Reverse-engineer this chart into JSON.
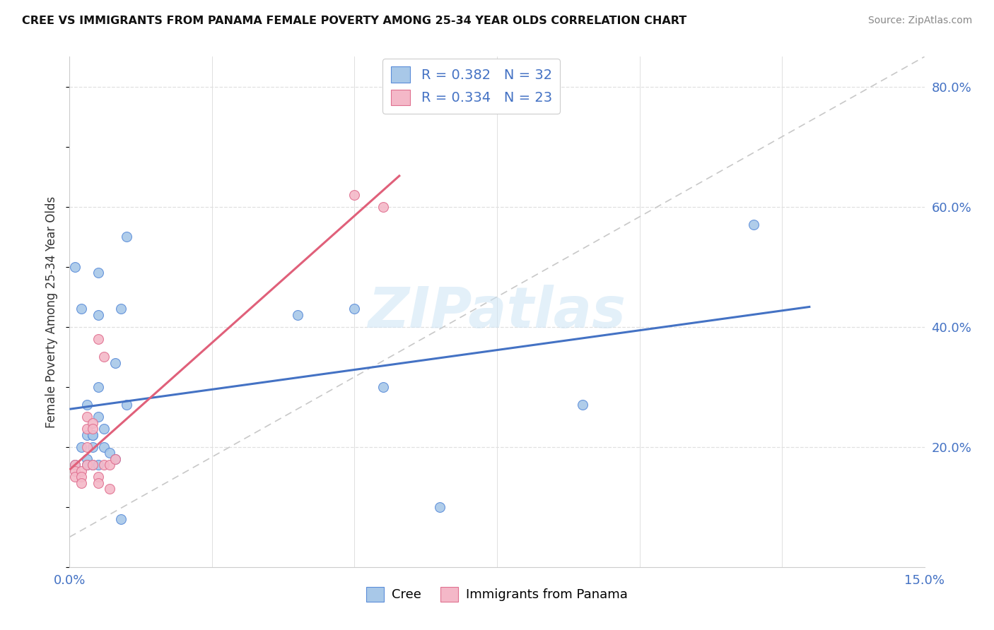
{
  "title": "CREE VS IMMIGRANTS FROM PANAMA FEMALE POVERTY AMONG 25-34 YEAR OLDS CORRELATION CHART",
  "source": "Source: ZipAtlas.com",
  "ylabel": "Female Poverty Among 25-34 Year Olds",
  "xlim": [
    0,
    0.15
  ],
  "ylim": [
    0,
    0.85
  ],
  "xticks": [
    0.0,
    0.025,
    0.05,
    0.075,
    0.1,
    0.125,
    0.15
  ],
  "yticks_right": [
    0.2,
    0.4,
    0.6,
    0.8
  ],
  "ytick_labels_right": [
    "20.0%",
    "40.0%",
    "60.0%",
    "80.0%"
  ],
  "cree_fill": "#a8c8e8",
  "cree_edge": "#5b8dd9",
  "panama_fill": "#f4b8c8",
  "panama_edge": "#e07090",
  "cree_line_color": "#4472c4",
  "panama_line_color": "#e0607a",
  "ref_line_color": "#c8c8c8",
  "legend_R_cree": "0.382",
  "legend_N_cree": "32",
  "legend_R_panama": "0.334",
  "legend_N_panama": "23",
  "cree_x": [
    0.001,
    0.001,
    0.002,
    0.002,
    0.003,
    0.003,
    0.003,
    0.003,
    0.004,
    0.004,
    0.004,
    0.004,
    0.005,
    0.005,
    0.005,
    0.005,
    0.005,
    0.006,
    0.006,
    0.007,
    0.008,
    0.008,
    0.009,
    0.009,
    0.01,
    0.01,
    0.04,
    0.05,
    0.055,
    0.065,
    0.09,
    0.12
  ],
  "cree_y": [
    0.17,
    0.5,
    0.2,
    0.43,
    0.18,
    0.22,
    0.27,
    0.17,
    0.2,
    0.22,
    0.17,
    0.22,
    0.3,
    0.25,
    0.42,
    0.17,
    0.49,
    0.2,
    0.23,
    0.19,
    0.18,
    0.34,
    0.08,
    0.43,
    0.27,
    0.55,
    0.42,
    0.43,
    0.3,
    0.1,
    0.27,
    0.57
  ],
  "panama_x": [
    0.001,
    0.001,
    0.001,
    0.002,
    0.002,
    0.002,
    0.003,
    0.003,
    0.003,
    0.003,
    0.004,
    0.004,
    0.004,
    0.005,
    0.005,
    0.005,
    0.006,
    0.006,
    0.007,
    0.007,
    0.008,
    0.05,
    0.055
  ],
  "panama_y": [
    0.17,
    0.16,
    0.15,
    0.16,
    0.15,
    0.14,
    0.2,
    0.23,
    0.25,
    0.17,
    0.17,
    0.24,
    0.23,
    0.15,
    0.14,
    0.38,
    0.35,
    0.17,
    0.13,
    0.17,
    0.18,
    0.62,
    0.6
  ],
  "watermark": "ZIPatlas",
  "bg_color": "#ffffff",
  "grid_color": "#e0e0e0",
  "marker_size": 100
}
